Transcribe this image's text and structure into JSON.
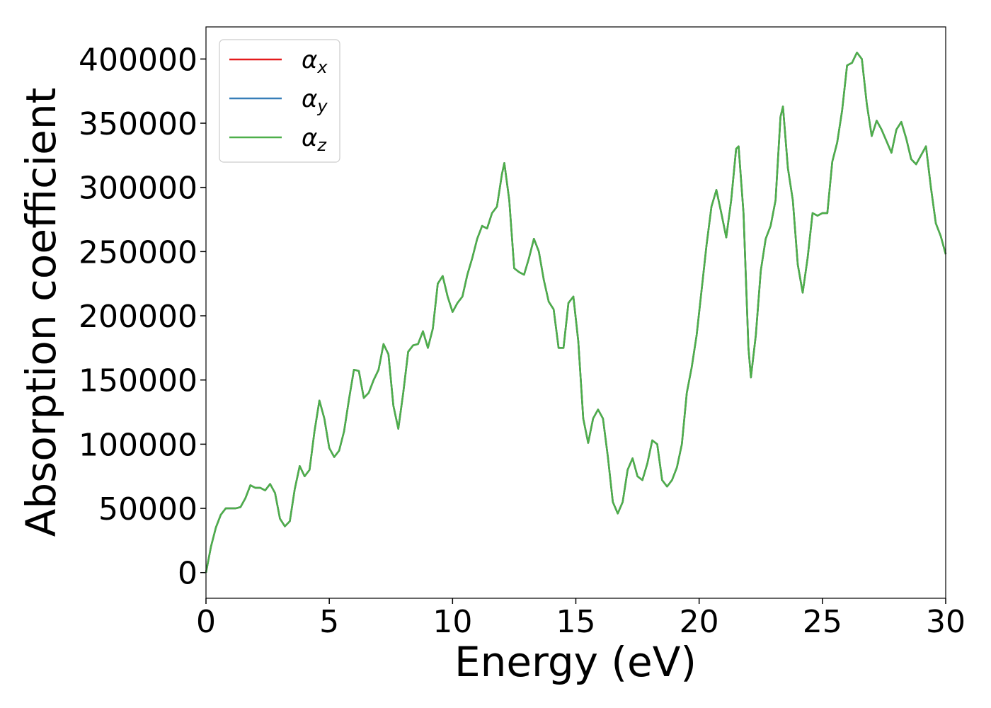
{
  "chart_data": {
    "type": "line",
    "xlabel": "Energy (eV)",
    "ylabel": "Absorption coefficient",
    "xlim": [
      0,
      30
    ],
    "xticks": [
      0,
      5,
      10,
      15,
      20,
      25,
      30
    ],
    "ylim": [
      -20000,
      425000
    ],
    "yticks": [
      0,
      50000,
      100000,
      150000,
      200000,
      250000,
      300000,
      350000,
      400000
    ],
    "legend": "upper left",
    "x": [
      0,
      0.2,
      0.4,
      0.6,
      0.8,
      1.0,
      1.2,
      1.4,
      1.6,
      1.8,
      2.0,
      2.2,
      2.4,
      2.6,
      2.8,
      3.0,
      3.2,
      3.4,
      3.6,
      3.8,
      4.0,
      4.2,
      4.4,
      4.6,
      4.8,
      5.0,
      5.2,
      5.4,
      5.6,
      5.8,
      6.0,
      6.2,
      6.4,
      6.6,
      6.8,
      7.0,
      7.2,
      7.4,
      7.6,
      7.8,
      8.0,
      8.2,
      8.4,
      8.6,
      8.8,
      9.0,
      9.2,
      9.4,
      9.6,
      9.8,
      10.0,
      10.2,
      10.4,
      10.6,
      10.8,
      11.0,
      11.2,
      11.4,
      11.6,
      11.8,
      12.0,
      12.1,
      12.3,
      12.5,
      12.7,
      12.9,
      13.1,
      13.3,
      13.5,
      13.7,
      13.9,
      14.1,
      14.3,
      14.5,
      14.7,
      14.9,
      15.1,
      15.3,
      15.5,
      15.7,
      15.9,
      16.1,
      16.3,
      16.5,
      16.7,
      16.9,
      17.1,
      17.3,
      17.5,
      17.7,
      17.9,
      18.1,
      18.3,
      18.5,
      18.7,
      18.9,
      19.1,
      19.3,
      19.5,
      19.7,
      19.9,
      20.1,
      20.3,
      20.5,
      20.7,
      20.9,
      21.1,
      21.3,
      21.5,
      21.6,
      21.8,
      22.0,
      22.1,
      22.3,
      22.5,
      22.7,
      22.9,
      23.1,
      23.3,
      23.4,
      23.6,
      23.8,
      24.0,
      24.2,
      24.4,
      24.6,
      24.8,
      25.0,
      25.2,
      25.4,
      25.6,
      25.8,
      26.0,
      26.2,
      26.4,
      26.6,
      26.8,
      27.0,
      27.2,
      27.4,
      27.6,
      27.8,
      28.0,
      28.2,
      28.4,
      28.6,
      28.8,
      29.0,
      29.2,
      29.4,
      29.6,
      29.8,
      30.0
    ],
    "series": [
      {
        "name": "αx",
        "color": "#e41a1c",
        "values": [
          0,
          20000,
          35000,
          45000,
          50000,
          50000,
          50000,
          51000,
          58000,
          68000,
          66000,
          66000,
          64000,
          69000,
          62000,
          42000,
          36000,
          40000,
          65000,
          83000,
          75000,
          80000,
          110000,
          134000,
          120000,
          97000,
          90000,
          95000,
          110000,
          135000,
          158000,
          157000,
          136000,
          140000,
          150000,
          158000,
          178000,
          170000,
          130000,
          112000,
          140000,
          172000,
          177000,
          178000,
          188000,
          175000,
          190000,
          225000,
          231000,
          215000,
          203000,
          210000,
          215000,
          232000,
          245000,
          260000,
          270000,
          268000,
          280000,
          285000,
          310000,
          319000,
          290000,
          237000,
          234000,
          232000,
          245000,
          260000,
          250000,
          228000,
          211000,
          205000,
          175000,
          175000,
          210000,
          215000,
          180000,
          120000,
          101000,
          120000,
          127000,
          120000,
          90000,
          55000,
          46000,
          55000,
          80000,
          89000,
          75000,
          72000,
          85000,
          103000,
          100000,
          72000,
          67000,
          72000,
          82000,
          100000,
          140000,
          160000,
          185000,
          220000,
          255000,
          285000,
          298000,
          280000,
          261000,
          290000,
          330000,
          332000,
          280000,
          175000,
          152000,
          185000,
          235000,
          260000,
          270000,
          290000,
          355000,
          363000,
          315000,
          290000,
          240000,
          218000,
          245000,
          280000,
          278000,
          280000,
          280000,
          320000,
          335000,
          360000,
          395000,
          397000,
          405000,
          400000,
          365000,
          340000,
          352000,
          345000,
          336000,
          327000,
          345000,
          351000,
          338000,
          322000,
          318000,
          325000,
          332000,
          300000,
          272000,
          262000,
          248000
        ]
      },
      {
        "name": "αy",
        "color": "#377eb8",
        "values": [
          0,
          20000,
          35000,
          45000,
          50000,
          50000,
          50000,
          51000,
          58000,
          68000,
          66000,
          66000,
          64000,
          69000,
          62000,
          42000,
          36000,
          40000,
          65000,
          83000,
          75000,
          80000,
          110000,
          134000,
          120000,
          97000,
          90000,
          95000,
          110000,
          135000,
          158000,
          157000,
          136000,
          140000,
          150000,
          158000,
          178000,
          170000,
          130000,
          112000,
          140000,
          172000,
          177000,
          178000,
          188000,
          175000,
          190000,
          225000,
          231000,
          215000,
          203000,
          210000,
          215000,
          232000,
          245000,
          260000,
          270000,
          268000,
          280000,
          285000,
          310000,
          319000,
          290000,
          237000,
          234000,
          232000,
          245000,
          260000,
          250000,
          228000,
          211000,
          205000,
          175000,
          175000,
          210000,
          215000,
          180000,
          120000,
          101000,
          120000,
          127000,
          120000,
          90000,
          55000,
          46000,
          55000,
          80000,
          89000,
          75000,
          72000,
          85000,
          103000,
          100000,
          72000,
          67000,
          72000,
          82000,
          100000,
          140000,
          160000,
          185000,
          220000,
          255000,
          285000,
          298000,
          280000,
          261000,
          290000,
          330000,
          332000,
          280000,
          175000,
          152000,
          185000,
          235000,
          260000,
          270000,
          290000,
          355000,
          363000,
          315000,
          290000,
          240000,
          218000,
          245000,
          280000,
          278000,
          280000,
          280000,
          320000,
          335000,
          360000,
          395000,
          397000,
          405000,
          400000,
          365000,
          340000,
          352000,
          345000,
          336000,
          327000,
          345000,
          351000,
          338000,
          322000,
          318000,
          325000,
          332000,
          300000,
          272000,
          262000,
          248000
        ]
      },
      {
        "name": "αz",
        "color": "#4daf4a",
        "values": [
          0,
          20000,
          35000,
          45000,
          50000,
          50000,
          50000,
          51000,
          58000,
          68000,
          66000,
          66000,
          64000,
          69000,
          62000,
          42000,
          36000,
          40000,
          65000,
          83000,
          75000,
          80000,
          110000,
          134000,
          120000,
          97000,
          90000,
          95000,
          110000,
          135000,
          158000,
          157000,
          136000,
          140000,
          150000,
          158000,
          178000,
          170000,
          130000,
          112000,
          140000,
          172000,
          177000,
          178000,
          188000,
          175000,
          190000,
          225000,
          231000,
          215000,
          203000,
          210000,
          215000,
          232000,
          245000,
          260000,
          270000,
          268000,
          280000,
          285000,
          310000,
          319000,
          290000,
          237000,
          234000,
          232000,
          245000,
          260000,
          250000,
          228000,
          211000,
          205000,
          175000,
          175000,
          210000,
          215000,
          180000,
          120000,
          101000,
          120000,
          127000,
          120000,
          90000,
          55000,
          46000,
          55000,
          80000,
          89000,
          75000,
          72000,
          85000,
          103000,
          100000,
          72000,
          67000,
          72000,
          82000,
          100000,
          140000,
          160000,
          185000,
          220000,
          255000,
          285000,
          298000,
          280000,
          261000,
          290000,
          330000,
          332000,
          280000,
          175000,
          152000,
          185000,
          235000,
          260000,
          270000,
          290000,
          355000,
          363000,
          315000,
          290000,
          240000,
          218000,
          245000,
          280000,
          278000,
          280000,
          280000,
          320000,
          335000,
          360000,
          395000,
          397000,
          405000,
          400000,
          365000,
          340000,
          352000,
          345000,
          336000,
          327000,
          345000,
          351000,
          338000,
          322000,
          318000,
          325000,
          332000,
          300000,
          272000,
          262000,
          248000
        ]
      }
    ]
  }
}
